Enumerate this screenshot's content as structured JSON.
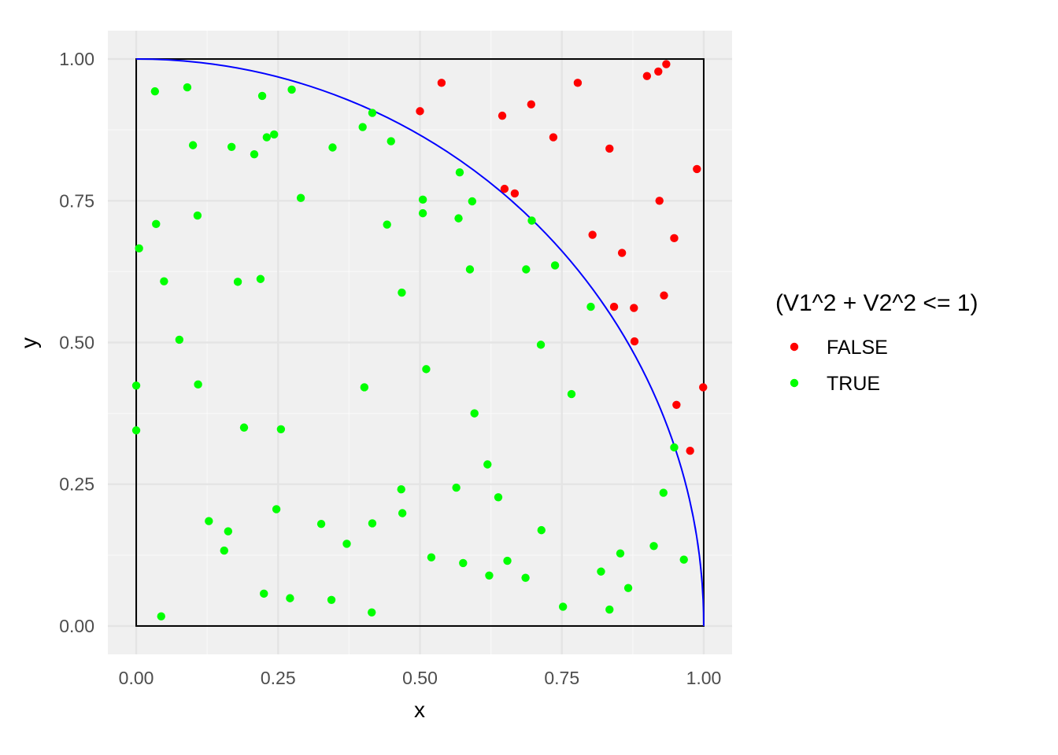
{
  "chart_data": {
    "type": "scatter",
    "xlabel": "x",
    "ylabel": "y",
    "xlim": [
      -0.05,
      1.05
    ],
    "ylim": [
      -0.05,
      1.05
    ],
    "x_ticks": [
      0,
      0.25,
      0.5,
      0.75,
      1
    ],
    "x_tick_labels": [
      "0.00",
      "0.25",
      "0.50",
      "0.75",
      "1.00"
    ],
    "y_ticks": [
      0,
      0.25,
      0.5,
      0.75,
      1
    ],
    "y_tick_labels": [
      "0.00",
      "0.25",
      "0.50",
      "0.75",
      "1.00"
    ],
    "grid": true,
    "legend": {
      "title": "(V1^2 + V2^2 <= 1)",
      "position": "right",
      "entries": [
        {
          "label": "FALSE",
          "color": "#ff0000"
        },
        {
          "label": "TRUE",
          "color": "#00ff00"
        }
      ]
    },
    "overlays": {
      "unit_square": {
        "color": "#000000"
      },
      "quarter_circle": {
        "color": "#0000ff"
      }
    },
    "series": [
      {
        "name": "FALSE",
        "color": "#ff0000",
        "points": [
          [
            0.538,
            0.958
          ],
          [
            0.5,
            0.908
          ],
          [
            0.645,
            0.9
          ],
          [
            0.696,
            0.92
          ],
          [
            0.778,
            0.958
          ],
          [
            0.9,
            0.97
          ],
          [
            0.92,
            0.978
          ],
          [
            0.934,
            0.991
          ],
          [
            0.735,
            0.862
          ],
          [
            0.834,
            0.842
          ],
          [
            0.988,
            0.806
          ],
          [
            0.922,
            0.75
          ],
          [
            0.649,
            0.771
          ],
          [
            0.667,
            0.763
          ],
          [
            0.804,
            0.69
          ],
          [
            0.948,
            0.684
          ],
          [
            0.856,
            0.658
          ],
          [
            0.93,
            0.583
          ],
          [
            0.842,
            0.563
          ],
          [
            0.877,
            0.561
          ],
          [
            0.878,
            0.502
          ],
          [
            0.999,
            0.421
          ],
          [
            0.952,
            0.39
          ],
          [
            0.976,
            0.309
          ]
        ]
      },
      {
        "name": "TRUE",
        "color": "#00ff00",
        "points": [
          [
            0.033,
            0.943
          ],
          [
            0.09,
            0.95
          ],
          [
            0.222,
            0.935
          ],
          [
            0.274,
            0.946
          ],
          [
            0.1,
            0.848
          ],
          [
            0.168,
            0.845
          ],
          [
            0.208,
            0.832
          ],
          [
            0.23,
            0.862
          ],
          [
            0.243,
            0.867
          ],
          [
            0.346,
            0.844
          ],
          [
            0.399,
            0.88
          ],
          [
            0.416,
            0.905
          ],
          [
            0.449,
            0.855
          ],
          [
            0.57,
            0.8
          ],
          [
            0.29,
            0.755
          ],
          [
            0.505,
            0.752
          ],
          [
            0.592,
            0.749
          ],
          [
            0.035,
            0.709
          ],
          [
            0.108,
            0.724
          ],
          [
            0.442,
            0.708
          ],
          [
            0.505,
            0.728
          ],
          [
            0.568,
            0.719
          ],
          [
            0.697,
            0.715
          ],
          [
            0.005,
            0.666
          ],
          [
            0.049,
            0.608
          ],
          [
            0.179,
            0.607
          ],
          [
            0.219,
            0.612
          ],
          [
            0.588,
            0.629
          ],
          [
            0.687,
            0.629
          ],
          [
            0.738,
            0.636
          ],
          [
            0.468,
            0.588
          ],
          [
            0.801,
            0.563
          ],
          [
            0.076,
            0.505
          ],
          [
            0.713,
            0.496
          ],
          [
            0.511,
            0.453
          ],
          [
            0.0,
            0.424
          ],
          [
            0.109,
            0.426
          ],
          [
            0.402,
            0.421
          ],
          [
            0.767,
            0.409
          ],
          [
            0.0,
            0.345
          ],
          [
            0.19,
            0.35
          ],
          [
            0.255,
            0.347
          ],
          [
            0.596,
            0.375
          ],
          [
            0.948,
            0.315
          ],
          [
            0.619,
            0.285
          ],
          [
            0.467,
            0.241
          ],
          [
            0.564,
            0.244
          ],
          [
            0.638,
            0.227
          ],
          [
            0.929,
            0.235
          ],
          [
            0.128,
            0.185
          ],
          [
            0.162,
            0.167
          ],
          [
            0.247,
            0.206
          ],
          [
            0.326,
            0.18
          ],
          [
            0.416,
            0.181
          ],
          [
            0.469,
            0.199
          ],
          [
            0.155,
            0.133
          ],
          [
            0.371,
            0.145
          ],
          [
            0.52,
            0.121
          ],
          [
            0.576,
            0.111
          ],
          [
            0.654,
            0.115
          ],
          [
            0.714,
            0.169
          ],
          [
            0.853,
            0.128
          ],
          [
            0.912,
            0.141
          ],
          [
            0.965,
            0.117
          ],
          [
            0.622,
            0.089
          ],
          [
            0.686,
            0.085
          ],
          [
            0.819,
            0.096
          ],
          [
            0.867,
            0.067
          ],
          [
            0.225,
            0.057
          ],
          [
            0.271,
            0.049
          ],
          [
            0.344,
            0.046
          ],
          [
            0.415,
            0.024
          ],
          [
            0.044,
            0.017
          ],
          [
            0.752,
            0.034
          ],
          [
            0.834,
            0.029
          ]
        ]
      }
    ]
  }
}
